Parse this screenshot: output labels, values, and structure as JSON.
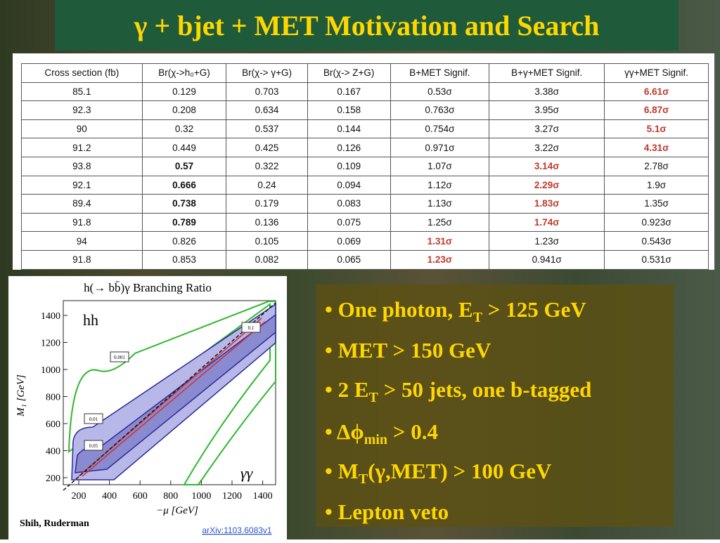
{
  "title": "γ + bjet + MET Motivation and Search",
  "table": {
    "header": [
      "Cross section (fb)",
      "Br(χ->h₀+G)",
      "Br(χ-> γ+G)",
      "Br(χ-> Z+G)",
      "B+MET Signif.",
      "B+γ+MET Signif.",
      "γγ+MET Signif."
    ],
    "rows": [
      [
        "85.1",
        "0.129",
        "0.703",
        "0.167",
        "0.53σ",
        "3.38σ",
        {
          "text": "6.61σ",
          "style": "red"
        }
      ],
      [
        "92.3",
        "0.208",
        "0.634",
        "0.158",
        "0.763σ",
        "3.95σ",
        {
          "text": "6.87σ",
          "style": "red"
        }
      ],
      [
        "90",
        "0.32",
        "0.537",
        "0.144",
        "0.754σ",
        "3.27σ",
        {
          "text": "5.1σ",
          "style": "red"
        }
      ],
      [
        "91.2",
        "0.449",
        "0.425",
        "0.126",
        "0.971σ",
        "3.22σ",
        {
          "text": "4.31σ",
          "style": "red"
        }
      ],
      [
        "93.8",
        {
          "text": "0.57",
          "style": "bold"
        },
        "0.322",
        "0.109",
        "1.07σ",
        {
          "text": "3.14σ",
          "style": "red"
        },
        "2.78σ"
      ],
      [
        "92.1",
        {
          "text": "0.666",
          "style": "bold"
        },
        "0.24",
        "0.094",
        "1.12σ",
        {
          "text": "2.29σ",
          "style": "red"
        },
        "1.9σ"
      ],
      [
        "89.4",
        {
          "text": "0.738",
          "style": "bold"
        },
        "0.179",
        "0.083",
        "1.13σ",
        {
          "text": "1.83σ",
          "style": "red"
        },
        "1.35σ"
      ],
      [
        "91.8",
        {
          "text": "0.789",
          "style": "bold"
        },
        "0.136",
        "0.075",
        "1.25σ",
        {
          "text": "1.74σ",
          "style": "red"
        },
        "0.923σ"
      ],
      [
        "94",
        "0.826",
        "0.105",
        "0.069",
        {
          "text": "1.31σ",
          "style": "red"
        },
        "1.23σ",
        "0.543σ"
      ],
      [
        "91.8",
        "0.853",
        "0.082",
        "0.065",
        {
          "text": "1.23σ",
          "style": "red"
        },
        "0.941σ",
        "0.531σ"
      ]
    ]
  },
  "figure": {
    "title": "h(→ bb̄)γ Branching Ratio",
    "label_top": "hh",
    "label_bottom": "γγ",
    "contours": [
      "0.001",
      "0.01",
      "0.05",
      "0.1"
    ],
    "xticks": [
      "200",
      "400",
      "600",
      "800",
      "1000",
      "1200",
      "1400"
    ],
    "yticks": [
      "200",
      "400",
      "600",
      "800",
      "1000",
      "1200",
      "1400"
    ],
    "xlabel": "−μ  [GeV]",
    "ylabel": "M₁  [GeV]",
    "credit": "Shih, Ruderman",
    "ref": "arXiv:1103.6083v1"
  },
  "bullets": [
    [
      {
        "t": "• One photon, E"
      },
      {
        "t": "T",
        "sub": true
      },
      {
        "t": " > 125 GeV"
      }
    ],
    [
      {
        "t": "• MET > 150 GeV"
      }
    ],
    [
      {
        "t": "• 2 E"
      },
      {
        "t": "T",
        "sub": true
      },
      {
        "t": " > 50 jets, one b-tagged"
      }
    ],
    [
      {
        "t": "• Δϕ"
      },
      {
        "t": "min",
        "sub": true
      },
      {
        "t": " > 0.4"
      }
    ],
    [
      {
        "t": "• M"
      },
      {
        "t": "T",
        "sub": true
      },
      {
        "t": "(γ,MET) > 100 GeV"
      }
    ],
    [
      {
        "t": "• Lepton veto"
      }
    ]
  ]
}
